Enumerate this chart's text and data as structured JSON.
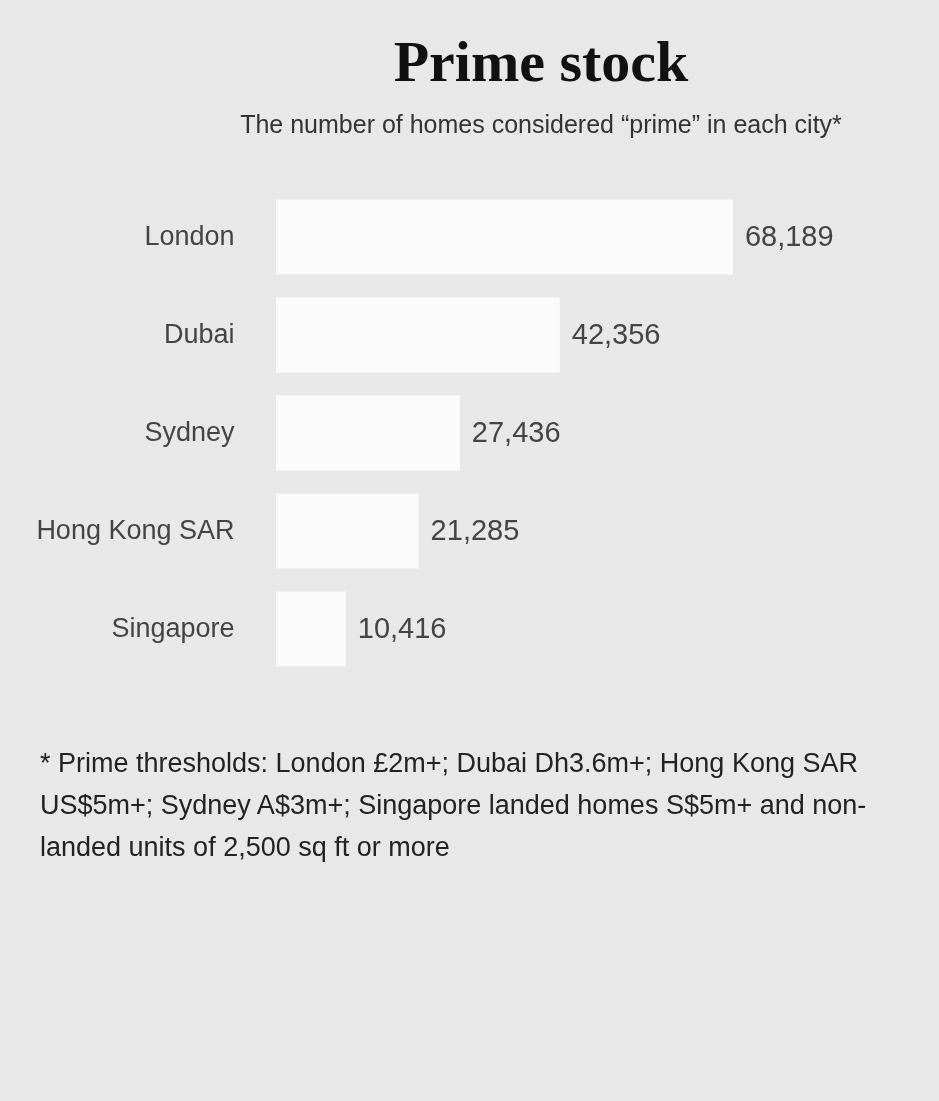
{
  "chart_data": {
    "type": "bar",
    "orientation": "horizontal",
    "title": "Prime stock",
    "subtitle": "The number of homes considered “prime” in each city*",
    "categories": [
      "London",
      "Dubai",
      "Sydney",
      "Hong Kong SAR",
      "Singapore"
    ],
    "values": [
      68189,
      42356,
      27436,
      21285,
      10416
    ],
    "color": "#fbfbfb",
    "value_labels": [
      "68,189",
      "42,356",
      "27,436",
      "21,285",
      "10,416"
    ],
    "annotations": [
      "* Prime thresholds: London £2m+; Dubai Dh3.6m+; Hong Kong SAR US$5m+; Sydney A$3m+; Singapore landed homes S$5m+ and non-landed units of 2,500 sq ft or more"
    ]
  }
}
